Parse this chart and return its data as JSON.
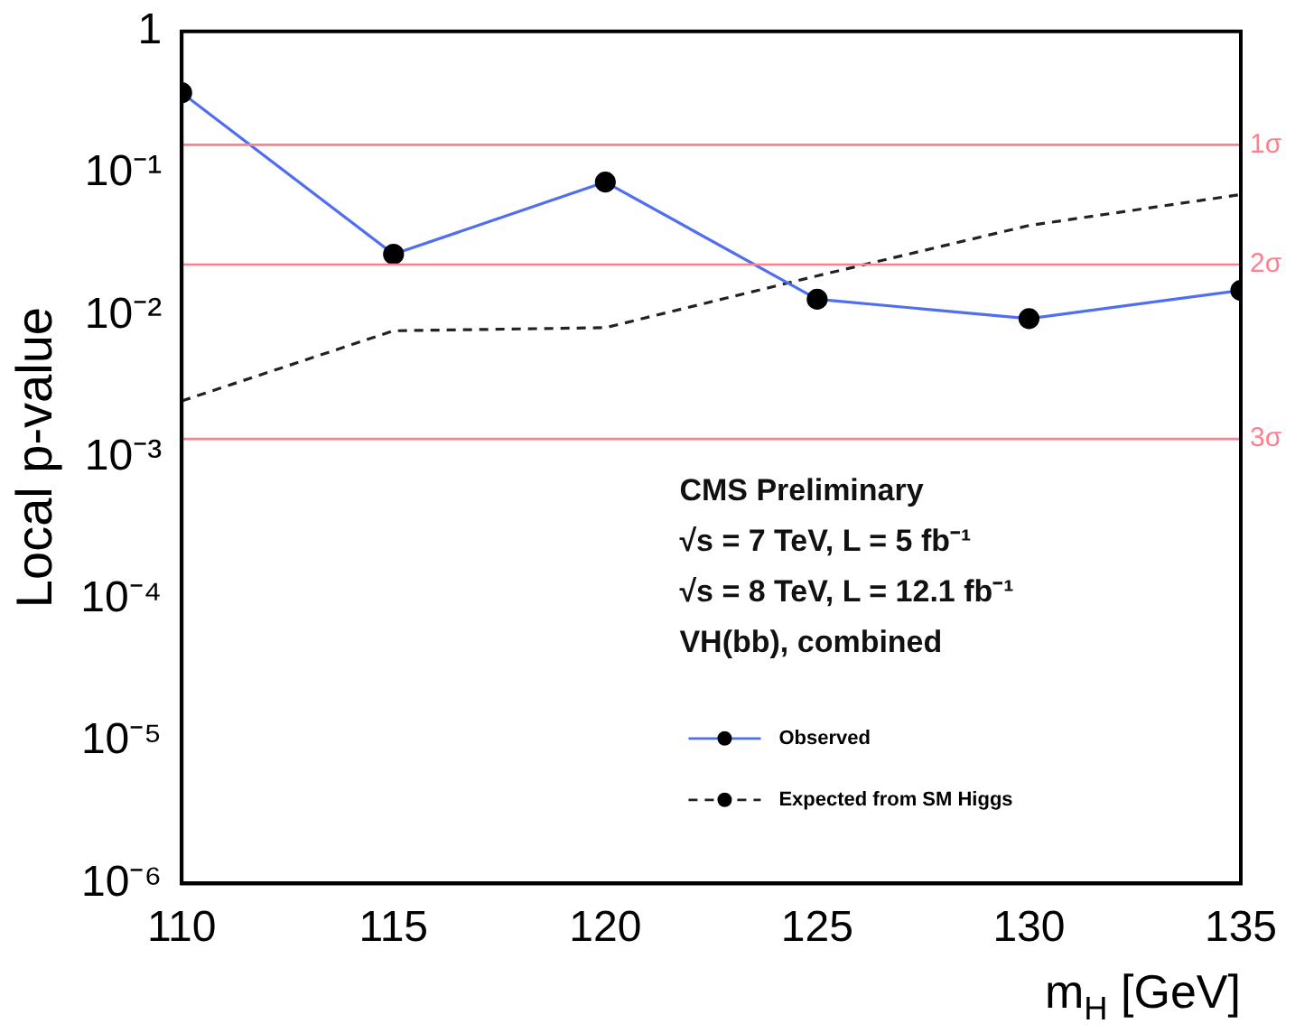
{
  "chart_data": {
    "type": "line",
    "ylabel": "Local p-value",
    "xlabel": "m$_{H}$ [GeV]",
    "x": [
      110,
      115,
      120,
      125,
      130,
      135
    ],
    "series": [
      {
        "name": "Observed",
        "color": "#4f6ef0",
        "marker": "circle",
        "line_style": "solid",
        "values": [
          0.37,
          0.027,
          0.087,
          0.013,
          0.0095,
          0.015
        ]
      },
      {
        "name": "Expected from SM Higgs",
        "color": "#222222",
        "marker": "none",
        "line_style": "dashed",
        "values": [
          0.0025,
          0.0078,
          0.0082,
          0.019,
          0.043,
          0.071
        ]
      }
    ],
    "log": "y",
    "xlim": [
      110,
      135
    ],
    "xticks": [
      110,
      115,
      120,
      125,
      130,
      135
    ],
    "ylim": [
      1e-06,
      1
    ],
    "yticks": [
      {
        "value": 1e-06,
        "label": "10⁻⁶"
      },
      {
        "value": 1e-05,
        "label": "10⁻⁵"
      },
      {
        "value": 0.0001,
        "label": "10⁻⁴"
      },
      {
        "value": 0.001,
        "label": "10⁻³"
      },
      {
        "value": 0.01,
        "label": "10⁻²"
      },
      {
        "value": 0.1,
        "label": "10⁻¹"
      },
      1
    ],
    "ref_lines": [
      {
        "axis": "y",
        "value": 0.159,
        "label": "1σ",
        "color": "#ff7f8f"
      },
      {
        "axis": "y",
        "value": 0.0228,
        "label": "2σ",
        "color": "#ff7f8f"
      },
      {
        "axis": "y",
        "value": 0.00135,
        "label": "3σ",
        "color": "#ff7f8f"
      }
    ],
    "annotations": [
      "CMS Preliminary",
      "√s = 7 TeV, L = 5 fb⁻¹",
      "√s = 8 TeV, L = 12.1 fb⁻¹",
      "VH(bb), combined"
    ],
    "legend": "bottom right",
    "grid": false
  }
}
